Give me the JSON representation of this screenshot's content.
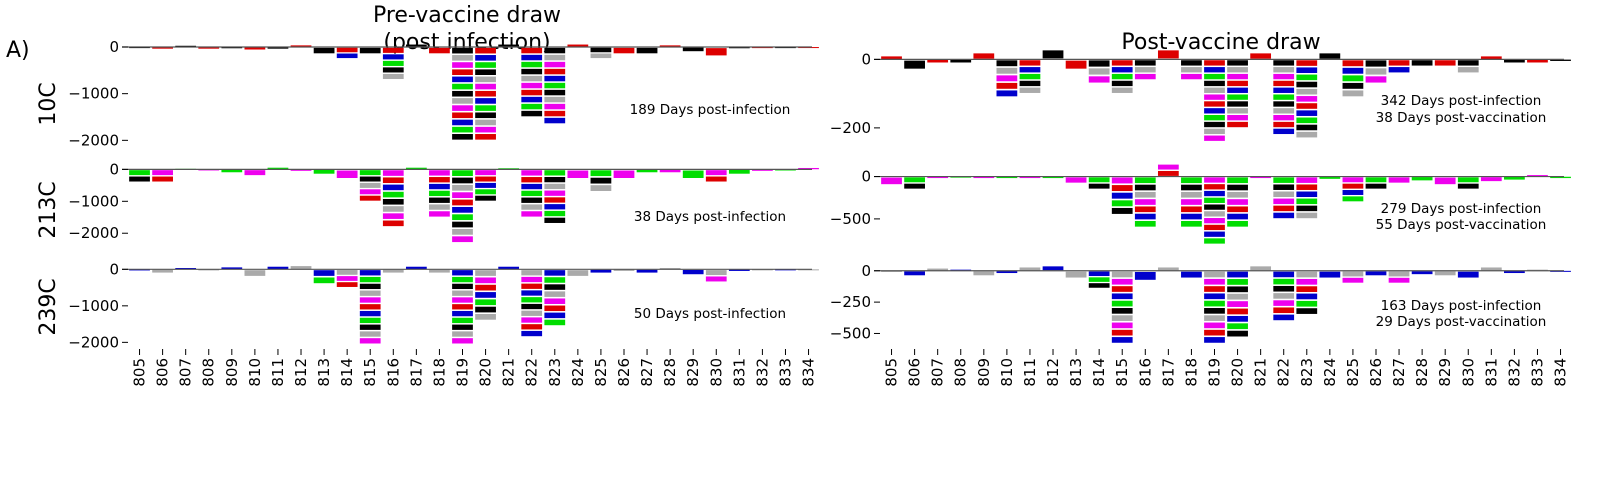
{
  "figure": {
    "panel_letter": "A)",
    "column_titles": [
      "Pre-vaccine draw",
      "(post infection)",
      "Post-vaccine draw"
    ],
    "row_labels": [
      "10C",
      "213C",
      "239C"
    ]
  },
  "chart_data": [
    {
      "type": "bar",
      "subtype": "sequence-logo",
      "column": "Pre-vaccine draw (post infection)",
      "row": "10C",
      "annotation": [
        "189 Days post-infection"
      ],
      "x": [
        "805",
        "806",
        "807",
        "808",
        "809",
        "810",
        "811",
        "812",
        "813",
        "814",
        "815",
        "816",
        "817",
        "818",
        "819",
        "820",
        "821",
        "822",
        "823",
        "824",
        "825",
        "826",
        "827",
        "828",
        "829",
        "830",
        "831",
        "832",
        "833",
        "834"
      ],
      "values": [
        -20,
        -40,
        30,
        -40,
        -30,
        -60,
        -40,
        40,
        -150,
        -250,
        -150,
        -700,
        60,
        -150,
        -2000,
        -2000,
        60,
        -1500,
        -1650,
        60,
        -250,
        -150,
        -150,
        40,
        -100,
        -200,
        -30,
        -20,
        -20,
        -10
      ],
      "yticks": [
        0,
        -1000,
        -2000
      ],
      "ylim": [
        -2100,
        150
      ],
      "colors": [
        "#000000",
        "#00dd00",
        "#0000cc",
        "#dd0000",
        "#ee00ee",
        "#aaaaaa"
      ]
    },
    {
      "type": "bar",
      "subtype": "sequence-logo",
      "column": "Pre-vaccine draw (post infection)",
      "row": "213C",
      "annotation": [
        "38 Days post-infection"
      ],
      "x": [
        "805",
        "806",
        "807",
        "808",
        "809",
        "810",
        "811",
        "812",
        "813",
        "814",
        "815",
        "816",
        "817",
        "818",
        "819",
        "820",
        "821",
        "822",
        "823",
        "824",
        "825",
        "826",
        "827",
        "828",
        "829",
        "830",
        "831",
        "832",
        "833",
        "834"
      ],
      "values": [
        -400,
        -400,
        20,
        -20,
        -100,
        -200,
        60,
        -50,
        -150,
        -300,
        -1000,
        -1800,
        60,
        -1500,
        -2300,
        -1000,
        40,
        -1500,
        -1700,
        -300,
        -700,
        -300,
        -100,
        -100,
        -300,
        -400,
        -150,
        -50,
        -30,
        50
      ],
      "yticks": [
        0,
        -1000,
        -2000
      ],
      "ylim": [
        -2400,
        200
      ],
      "colors": [
        "#000000",
        "#00dd00",
        "#0000cc",
        "#dd0000",
        "#ee00ee",
        "#aaaaaa"
      ]
    },
    {
      "type": "bar",
      "subtype": "sequence-logo",
      "column": "Pre-vaccine draw (post infection)",
      "row": "239C",
      "annotation": [
        "50 Days post-infection"
      ],
      "x": [
        "805",
        "806",
        "807",
        "808",
        "809",
        "810",
        "811",
        "812",
        "813",
        "814",
        "815",
        "816",
        "817",
        "818",
        "819",
        "820",
        "821",
        "822",
        "823",
        "824",
        "825",
        "826",
        "827",
        "828",
        "829",
        "830",
        "831",
        "832",
        "833",
        "834"
      ],
      "values": [
        -30,
        -100,
        40,
        -30,
        60,
        -200,
        80,
        100,
        -400,
        -500,
        -2050,
        -100,
        80,
        -100,
        -2050,
        -1400,
        80,
        -1850,
        -1550,
        -200,
        -100,
        -50,
        -100,
        40,
        -150,
        -350,
        -50,
        -20,
        -10,
        -10
      ],
      "yticks": [
        0,
        -1000,
        -2000
      ],
      "ylim": [
        -2100,
        200
      ],
      "colors": [
        "#000000",
        "#00dd00",
        "#0000cc",
        "#dd0000",
        "#ee00ee",
        "#aaaaaa"
      ]
    },
    {
      "type": "bar",
      "subtype": "sequence-logo",
      "column": "Post-vaccine draw",
      "row": "10C",
      "annotation": [
        "342 Days post-infection",
        "38 Days post-vaccination"
      ],
      "x": [
        "805",
        "806",
        "807",
        "808",
        "809",
        "810",
        "811",
        "812",
        "813",
        "814",
        "815",
        "816",
        "817",
        "818",
        "819",
        "820",
        "821",
        "822",
        "823",
        "824",
        "825",
        "826",
        "827",
        "828",
        "829",
        "830",
        "831",
        "832",
        "833",
        "834"
      ],
      "values": [
        10,
        -30,
        -10,
        -10,
        20,
        -110,
        -100,
        30,
        -30,
        -70,
        -100,
        -60,
        30,
        -60,
        -240,
        -200,
        20,
        -220,
        -230,
        20,
        -110,
        -70,
        -40,
        -20,
        -20,
        -40,
        10,
        -10,
        -10,
        -5
      ],
      "yticks": [
        0,
        -200
      ],
      "ylim": [
        -250,
        45
      ],
      "colors": [
        "#000000",
        "#00dd00",
        "#0000cc",
        "#dd0000",
        "#ee00ee",
        "#aaaaaa"
      ]
    },
    {
      "type": "bar",
      "subtype": "sequence-logo",
      "column": "Post-vaccine draw",
      "row": "213C",
      "annotation": [
        "279 Days post-infection",
        "55 Days post-vaccination"
      ],
      "x": [
        "805",
        "806",
        "807",
        "808",
        "809",
        "810",
        "811",
        "812",
        "813",
        "814",
        "815",
        "816",
        "817",
        "818",
        "819",
        "820",
        "821",
        "822",
        "823",
        "824",
        "825",
        "826",
        "827",
        "828",
        "829",
        "830",
        "831",
        "832",
        "833",
        "834"
      ],
      "values": [
        -100,
        -150,
        -20,
        -10,
        -20,
        -20,
        -20,
        -20,
        -80,
        -150,
        -450,
        -600,
        150,
        -600,
        -800,
        -600,
        -20,
        -500,
        -500,
        -30,
        -300,
        -150,
        -80,
        -50,
        -100,
        -150,
        -60,
        -40,
        20,
        -20
      ],
      "yticks": [
        0,
        -500
      ],
      "ylim": [
        -820,
        160
      ],
      "colors": [
        "#000000",
        "#00dd00",
        "#0000cc",
        "#dd0000",
        "#ee00ee",
        "#aaaaaa"
      ]
    },
    {
      "type": "bar",
      "subtype": "sequence-logo",
      "column": "Post-vaccine draw",
      "row": "239C",
      "annotation": [
        "163 Days post-infection",
        "29 Days post-vaccination"
      ],
      "x": [
        "805",
        "806",
        "807",
        "808",
        "809",
        "810",
        "811",
        "812",
        "813",
        "814",
        "815",
        "816",
        "817",
        "818",
        "819",
        "820",
        "821",
        "822",
        "823",
        "824",
        "825",
        "826",
        "827",
        "828",
        "829",
        "830",
        "831",
        "832",
        "833",
        "834"
      ],
      "values": [
        -10,
        -40,
        20,
        10,
        -40,
        -20,
        30,
        40,
        -60,
        -140,
        -580,
        -80,
        30,
        -60,
        -580,
        -530,
        40,
        -400,
        -350,
        -60,
        -100,
        -40,
        -100,
        -30,
        -40,
        -60,
        30,
        -20,
        10,
        -5
      ],
      "yticks": [
        0,
        -250,
        -500
      ],
      "ylim": [
        -600,
        70
      ],
      "colors": [
        "#000000",
        "#00dd00",
        "#0000cc",
        "#dd0000",
        "#ee00ee",
        "#aaaaaa"
      ]
    }
  ]
}
